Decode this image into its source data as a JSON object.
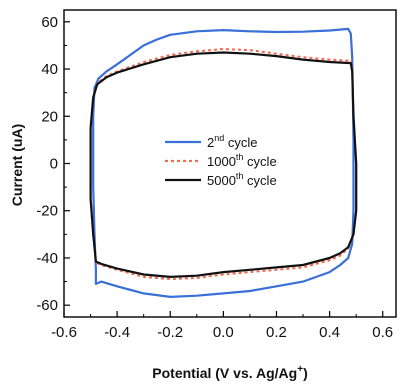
{
  "chart_data": {
    "type": "line",
    "title": "",
    "xlabel": {
      "main": "Potential (V vs. Ag/Ag",
      "sup": "+",
      "end": ")"
    },
    "ylabel": "Current (uA)",
    "xlim": [
      -0.6,
      0.65
    ],
    "ylim": [
      -65,
      65
    ],
    "x_ticks": [
      -0.6,
      -0.4,
      -0.2,
      0.0,
      0.2,
      0.4,
      0.6
    ],
    "x_tick_labels": [
      "-0.6",
      "-0.4",
      "-0.2",
      "0.0",
      "0.2",
      "0.4",
      "0.6"
    ],
    "y_ticks": [
      -60,
      -40,
      -20,
      0,
      20,
      40,
      60
    ],
    "y_tick_labels": [
      "-60",
      "-40",
      "-20",
      "0",
      "20",
      "40",
      "60"
    ],
    "grid": false,
    "legend_position": "center",
    "series": [
      {
        "name": "2nd cycle",
        "label_parts": {
          "pre": "2",
          "sup": "nd",
          "post": " cycle"
        },
        "color": "#3a6fd8",
        "dash": "solid",
        "points": [
          [
            -0.49,
            0
          ],
          [
            -0.49,
            20
          ],
          [
            -0.485,
            32
          ],
          [
            -0.47,
            36
          ],
          [
            -0.44,
            39
          ],
          [
            -0.4,
            42
          ],
          [
            -0.35,
            46
          ],
          [
            -0.3,
            50
          ],
          [
            -0.25,
            52.5
          ],
          [
            -0.2,
            54.5
          ],
          [
            -0.1,
            56
          ],
          [
            0.0,
            56.5
          ],
          [
            0.1,
            56
          ],
          [
            0.2,
            55.7
          ],
          [
            0.3,
            55.8
          ],
          [
            0.4,
            56.3
          ],
          [
            0.47,
            57
          ],
          [
            0.48,
            55
          ],
          [
            0.485,
            45
          ],
          [
            0.49,
            10
          ],
          [
            0.49,
            -20
          ],
          [
            0.485,
            -34
          ],
          [
            0.47,
            -40
          ],
          [
            0.44,
            -43
          ],
          [
            0.4,
            -46
          ],
          [
            0.3,
            -50
          ],
          [
            0.2,
            -52
          ],
          [
            0.1,
            -54
          ],
          [
            0.0,
            -55
          ],
          [
            -0.1,
            -56
          ],
          [
            -0.2,
            -56.5
          ],
          [
            -0.3,
            -55
          ],
          [
            -0.4,
            -52
          ],
          [
            -0.46,
            -50
          ],
          [
            -0.48,
            -51
          ],
          [
            -0.48,
            -45
          ],
          [
            -0.485,
            -30
          ],
          [
            -0.49,
            -10
          ],
          [
            -0.49,
            0
          ]
        ]
      },
      {
        "name": "1000th cycle",
        "label_parts": {
          "pre": "1000",
          "sup": "th",
          "post": " cycle"
        },
        "color": "#f26a50",
        "dash": "dotted",
        "points": [
          [
            -0.5,
            0
          ],
          [
            -0.5,
            15
          ],
          [
            -0.49,
            28
          ],
          [
            -0.475,
            34
          ],
          [
            -0.44,
            37
          ],
          [
            -0.4,
            39
          ],
          [
            -0.3,
            43
          ],
          [
            -0.2,
            46
          ],
          [
            -0.1,
            47.5
          ],
          [
            0.0,
            48.5
          ],
          [
            0.1,
            48
          ],
          [
            0.2,
            46.5
          ],
          [
            0.3,
            45
          ],
          [
            0.4,
            44
          ],
          [
            0.48,
            43.5
          ],
          [
            0.485,
            40
          ],
          [
            0.49,
            20
          ],
          [
            0.5,
            0
          ],
          [
            0.5,
            -20
          ],
          [
            0.49,
            -30
          ],
          [
            0.47,
            -36
          ],
          [
            0.44,
            -39
          ],
          [
            0.4,
            -41
          ],
          [
            0.3,
            -44
          ],
          [
            0.2,
            -45
          ],
          [
            0.1,
            -46
          ],
          [
            0.0,
            -47
          ],
          [
            -0.1,
            -48.5
          ],
          [
            -0.2,
            -49
          ],
          [
            -0.3,
            -48
          ],
          [
            -0.4,
            -45
          ],
          [
            -0.46,
            -43
          ],
          [
            -0.48,
            -42
          ],
          [
            -0.49,
            -30
          ],
          [
            -0.5,
            -15
          ],
          [
            -0.5,
            0
          ]
        ]
      },
      {
        "name": "5000th cycle",
        "label_parts": {
          "pre": "5000",
          "sup": "th",
          "post": " cycle"
        },
        "color": "#111111",
        "dash": "solid",
        "points": [
          [
            -0.5,
            0
          ],
          [
            -0.5,
            15
          ],
          [
            -0.49,
            28
          ],
          [
            -0.475,
            33.5
          ],
          [
            -0.44,
            36.5
          ],
          [
            -0.4,
            38.5
          ],
          [
            -0.3,
            42
          ],
          [
            -0.2,
            45
          ],
          [
            -0.1,
            46.5
          ],
          [
            0.0,
            47
          ],
          [
            0.1,
            46.5
          ],
          [
            0.2,
            45.5
          ],
          [
            0.3,
            44
          ],
          [
            0.4,
            43
          ],
          [
            0.48,
            42.5
          ],
          [
            0.485,
            39
          ],
          [
            0.49,
            20
          ],
          [
            0.5,
            0
          ],
          [
            0.5,
            -20
          ],
          [
            0.49,
            -30
          ],
          [
            0.47,
            -35.5
          ],
          [
            0.44,
            -38
          ],
          [
            0.4,
            -40
          ],
          [
            0.3,
            -43
          ],
          [
            0.2,
            -44
          ],
          [
            0.1,
            -45
          ],
          [
            0.0,
            -46
          ],
          [
            -0.1,
            -47.5
          ],
          [
            -0.2,
            -48
          ],
          [
            -0.3,
            -47
          ],
          [
            -0.4,
            -44.5
          ],
          [
            -0.46,
            -42.5
          ],
          [
            -0.48,
            -41.5
          ],
          [
            -0.49,
            -30
          ],
          [
            -0.5,
            -15
          ],
          [
            -0.5,
            0
          ]
        ]
      }
    ]
  }
}
